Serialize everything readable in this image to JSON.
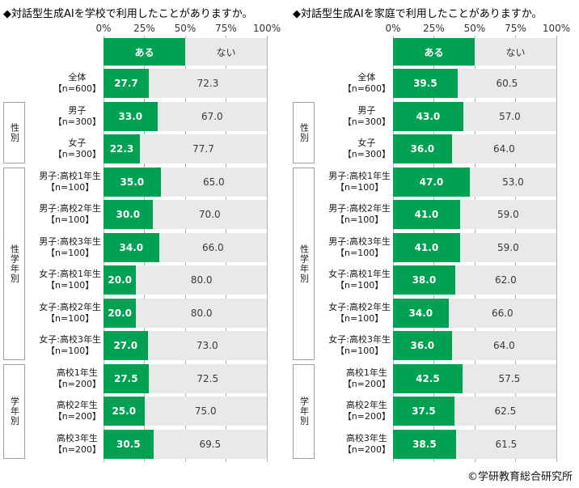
{
  "footer": "©学研教育総合研究所",
  "colors": {
    "yes_green": "#00a152",
    "no_gray": "#e9e9e9",
    "grid": "#b3b3b3"
  },
  "chart_data": [
    {
      "type": "bar",
      "stacked": true,
      "orientation": "horizontal",
      "title": "◆対話型生成AIを学校で利用したことがありますか。",
      "legend": [
        "ある",
        "ない"
      ],
      "axis_ticks": [
        "0%",
        "25%",
        "50%",
        "75%",
        "100%"
      ],
      "xlim": [
        0,
        100
      ],
      "grid": true,
      "groups": [
        {
          "label": "性別",
          "start": 1,
          "end": 2
        },
        {
          "label": "性学年別",
          "start": 3,
          "end": 8
        },
        {
          "label": "学年別",
          "start": 9,
          "end": 11
        }
      ],
      "rows": [
        {
          "label": "全体",
          "n": "【n=600】",
          "yes": 27.7,
          "no": 72.3
        },
        {
          "label": "男子",
          "n": "【n=300】",
          "yes": 33.0,
          "no": 67.0
        },
        {
          "label": "女子",
          "n": "【n=300】",
          "yes": 22.3,
          "no": 77.7
        },
        {
          "label": "男子:高校1年生",
          "n": "【n=100】",
          "yes": 35.0,
          "no": 65.0
        },
        {
          "label": "男子:高校2年生",
          "n": "【n=100】",
          "yes": 30.0,
          "no": 70.0
        },
        {
          "label": "男子:高校3年生",
          "n": "【n=100】",
          "yes": 34.0,
          "no": 66.0
        },
        {
          "label": "女子:高校1年生",
          "n": "【n=100】",
          "yes": 20.0,
          "no": 80.0
        },
        {
          "label": "女子:高校2年生",
          "n": "【n=100】",
          "yes": 20.0,
          "no": 80.0
        },
        {
          "label": "女子:高校3年生",
          "n": "【n=100】",
          "yes": 27.0,
          "no": 73.0
        },
        {
          "label": "高校1年生",
          "n": "【n=200】",
          "yes": 27.5,
          "no": 72.5
        },
        {
          "label": "高校2年生",
          "n": "【n=200】",
          "yes": 25.0,
          "no": 75.0
        },
        {
          "label": "高校3年生",
          "n": "【n=200】",
          "yes": 30.5,
          "no": 69.5
        }
      ]
    },
    {
      "type": "bar",
      "stacked": true,
      "orientation": "horizontal",
      "title": "◆対話型生成AIを家庭で利用したことがありますか。",
      "legend": [
        "ある",
        "ない"
      ],
      "axis_ticks": [
        "0%",
        "25%",
        "50%",
        "75%",
        "100%"
      ],
      "xlim": [
        0,
        100
      ],
      "grid": true,
      "groups": [
        {
          "label": "性別",
          "start": 1,
          "end": 2
        },
        {
          "label": "性学年別",
          "start": 3,
          "end": 8
        },
        {
          "label": "学年別",
          "start": 9,
          "end": 11
        }
      ],
      "rows": [
        {
          "label": "全体",
          "n": "【n=600】",
          "yes": 39.5,
          "no": 60.5
        },
        {
          "label": "男子",
          "n": "【n=300】",
          "yes": 43.0,
          "no": 57.0
        },
        {
          "label": "女子",
          "n": "【n=300】",
          "yes": 36.0,
          "no": 64.0
        },
        {
          "label": "男子:高校1年生",
          "n": "【n=100】",
          "yes": 47.0,
          "no": 53.0
        },
        {
          "label": "男子:高校2年生",
          "n": "【n=100】",
          "yes": 41.0,
          "no": 59.0
        },
        {
          "label": "男子:高校3年生",
          "n": "【n=100】",
          "yes": 41.0,
          "no": 59.0
        },
        {
          "label": "女子:高校1年生",
          "n": "【n=100】",
          "yes": 38.0,
          "no": 62.0
        },
        {
          "label": "女子:高校2年生",
          "n": "【n=100】",
          "yes": 34.0,
          "no": 66.0
        },
        {
          "label": "女子:高校3年生",
          "n": "【n=100】",
          "yes": 36.0,
          "no": 64.0
        },
        {
          "label": "高校1年生",
          "n": "【n=200】",
          "yes": 42.5,
          "no": 57.5
        },
        {
          "label": "高校2年生",
          "n": "【n=200】",
          "yes": 37.5,
          "no": 62.5
        },
        {
          "label": "高校3年生",
          "n": "【n=200】",
          "yes": 38.5,
          "no": 61.5
        }
      ]
    }
  ]
}
